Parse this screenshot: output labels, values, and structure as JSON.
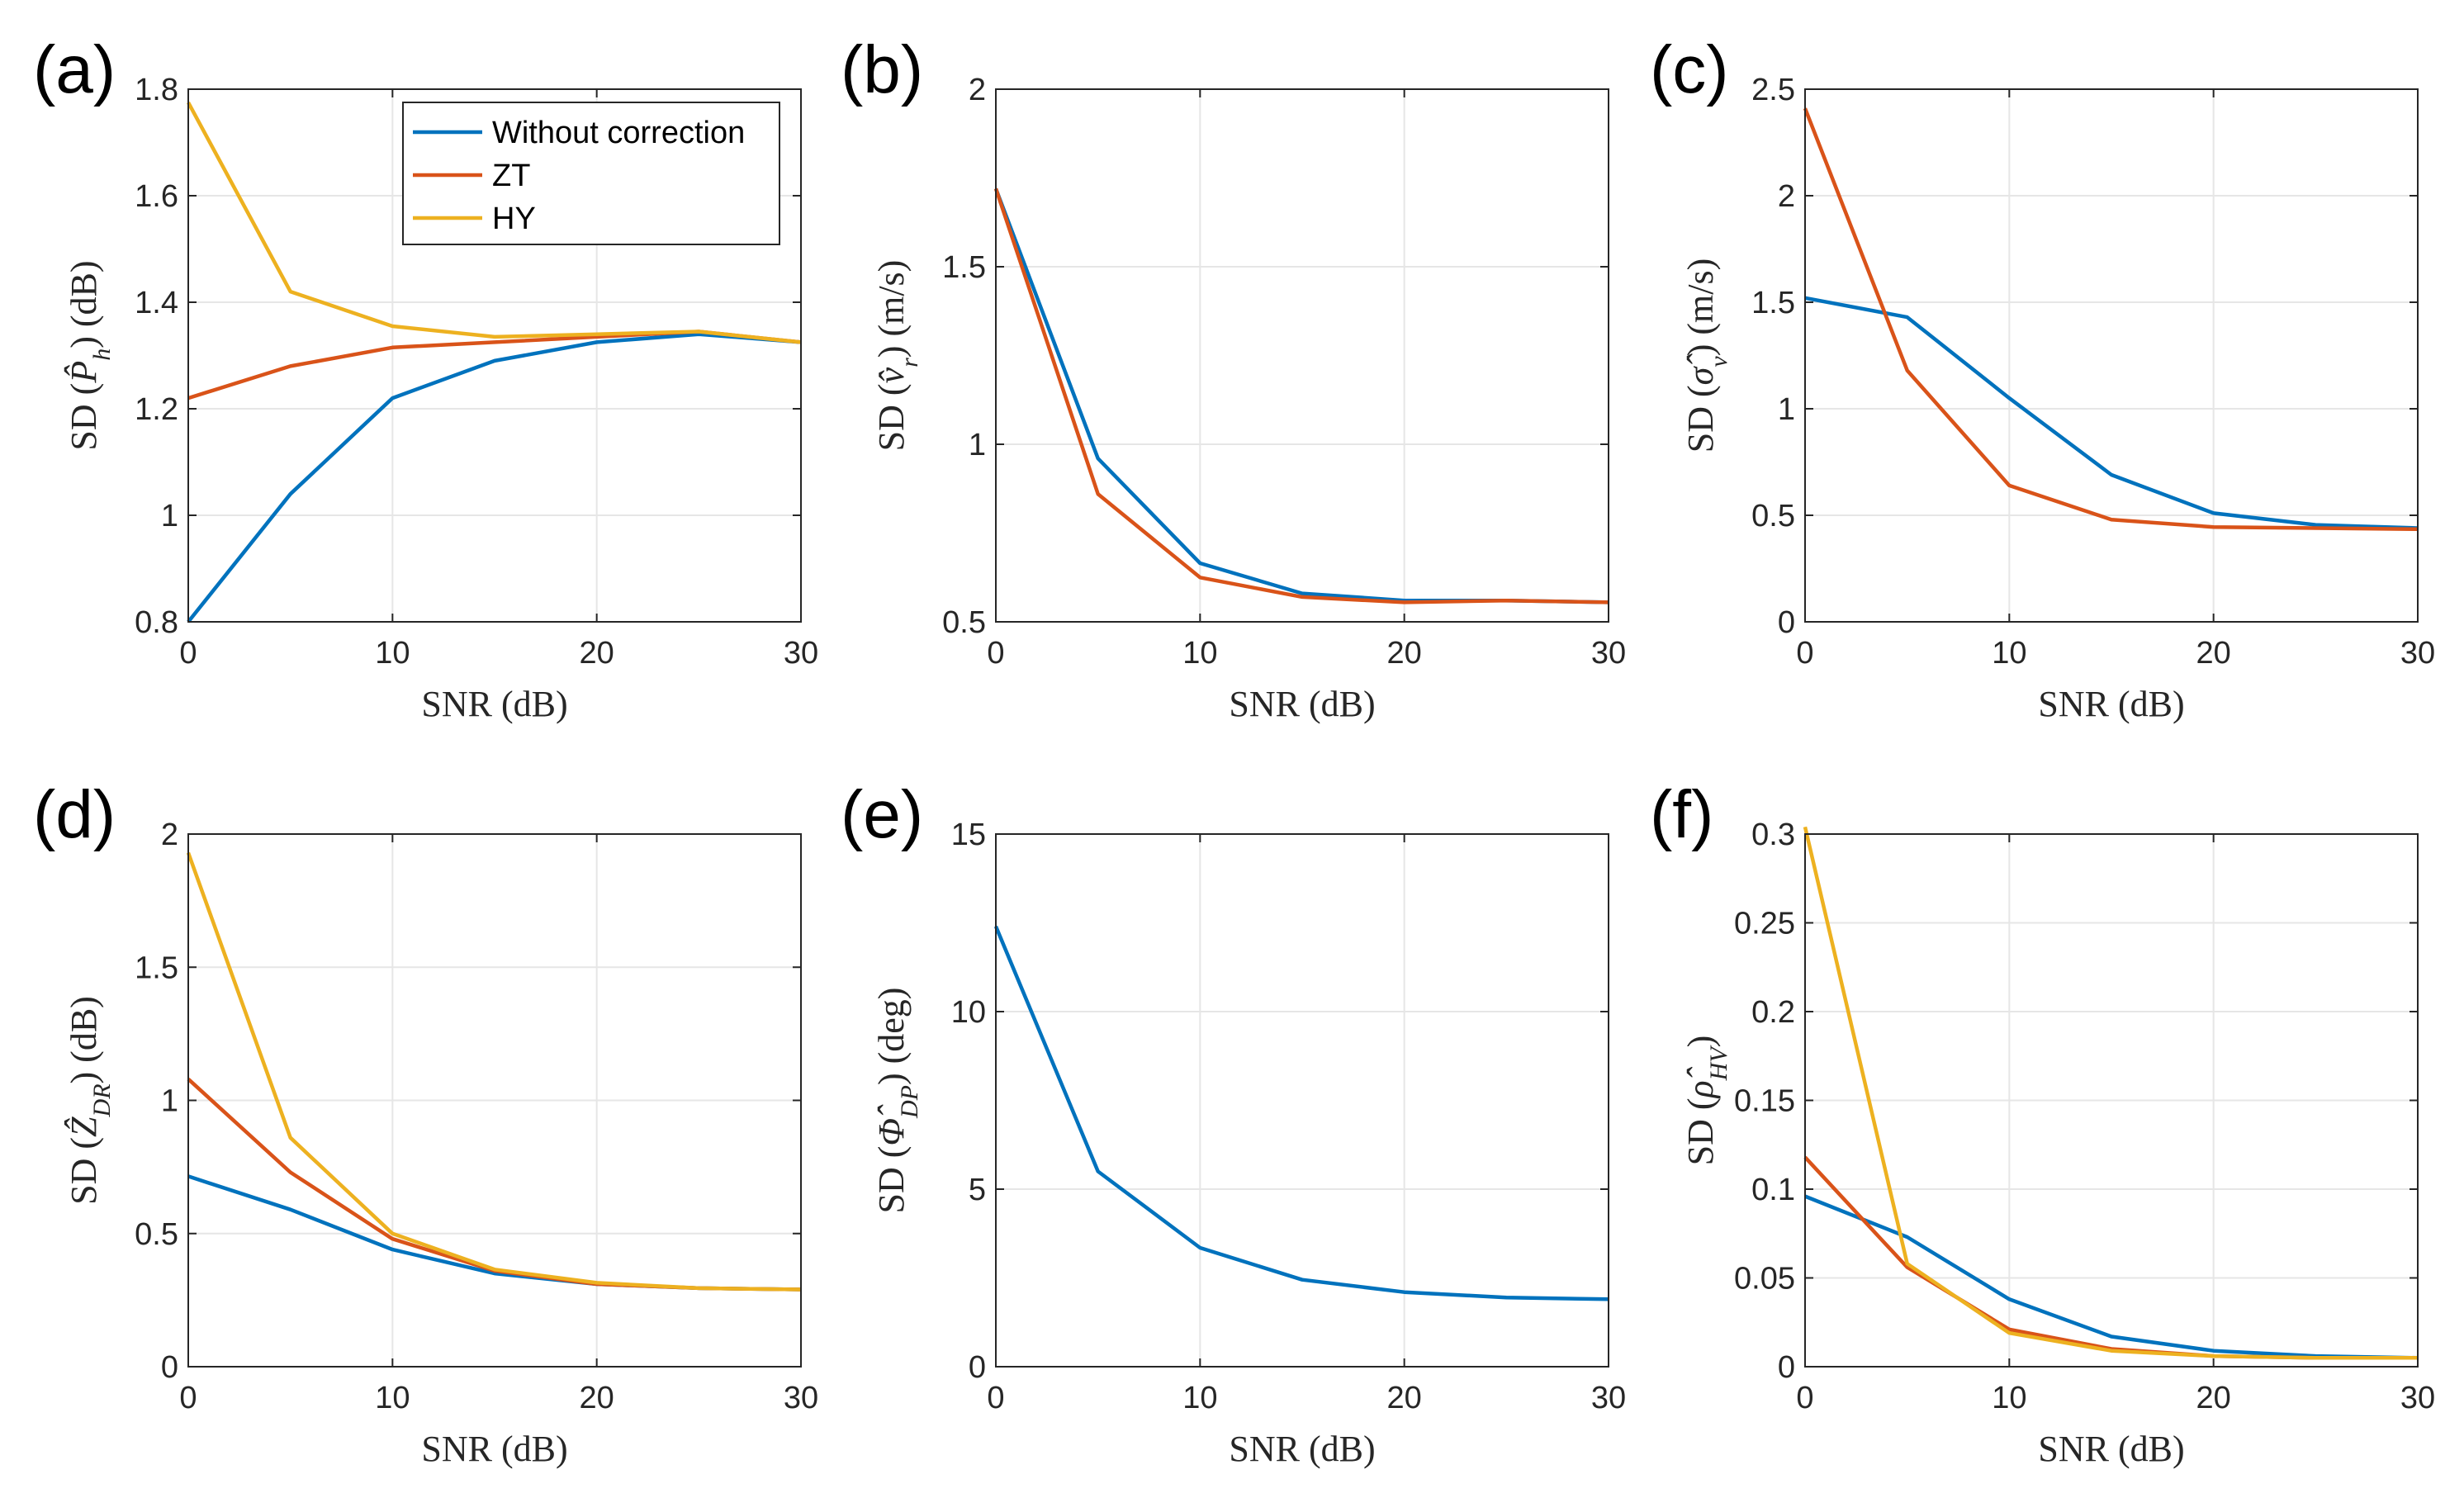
{
  "colors": {
    "without_correction": "#0072BD",
    "zt": "#D95319",
    "hy": "#EDB120",
    "grid": "#e6e6e6",
    "axis": "#262626"
  },
  "legend": {
    "entries": [
      "Without correction",
      "ZT",
      "HY"
    ]
  },
  "chart_data": [
    {
      "type": "line",
      "panel": "(a)",
      "xlabel": "SNR (dB)",
      "ylabel": "SD (P̂h) (dB)",
      "ylabel_parts": {
        "pre": "SD (",
        "sym": "P̂",
        "sub": "h",
        "post": ") (dB)"
      },
      "x": [
        0,
        5,
        10,
        15,
        20,
        25,
        30
      ],
      "xlim": [
        0,
        30
      ],
      "ylim": [
        0.8,
        1.8
      ],
      "xticks": [
        "0",
        "10",
        "20",
        "30"
      ],
      "yticks": [
        "0.8",
        "1",
        "1.2",
        "1.4",
        "1.6",
        "1.8"
      ],
      "grid": true,
      "legend_position": "top-right",
      "series": [
        {
          "name": "Without correction",
          "values": [
            0.8,
            1.04,
            1.22,
            1.29,
            1.325,
            1.34,
            1.325
          ]
        },
        {
          "name": "ZT",
          "values": [
            1.22,
            1.28,
            1.315,
            1.325,
            1.335,
            1.345,
            1.325
          ]
        },
        {
          "name": "HY",
          "values": [
            1.775,
            1.42,
            1.355,
            1.335,
            1.34,
            1.345,
            1.325
          ]
        }
      ]
    },
    {
      "type": "line",
      "panel": "(b)",
      "xlabel": "SNR (dB)",
      "ylabel": "SD (v̂r) (m/s)",
      "ylabel_parts": {
        "pre": "SD (",
        "sym": "v̂",
        "sub": "r",
        "post": ") (m/s)"
      },
      "x": [
        0,
        5,
        10,
        15,
        20,
        25,
        30
      ],
      "xlim": [
        0,
        30
      ],
      "ylim": [
        0.5,
        2
      ],
      "xticks": [
        "0",
        "10",
        "20",
        "30"
      ],
      "yticks": [
        "0.5",
        "1",
        "1.5",
        "2"
      ],
      "grid": true,
      "series": [
        {
          "name": "Without correction",
          "values": [
            1.72,
            0.96,
            0.665,
            0.58,
            0.56,
            0.56,
            0.555
          ]
        },
        {
          "name": "ZT",
          "values": [
            1.72,
            0.86,
            0.625,
            0.57,
            0.555,
            0.56,
            0.555
          ]
        }
      ]
    },
    {
      "type": "line",
      "panel": "(c)",
      "xlabel": "SNR (dB)",
      "ylabel": "SD (σ̂v) (m/s)",
      "ylabel_parts": {
        "pre": "SD (",
        "sym": "σ̂",
        "sub": "v",
        "post": ") (m/s)"
      },
      "x": [
        0,
        5,
        10,
        15,
        20,
        25,
        30
      ],
      "xlim": [
        0,
        30
      ],
      "ylim": [
        0,
        2.5
      ],
      "xticks": [
        "0",
        "10",
        "20",
        "30"
      ],
      "yticks": [
        "0",
        "0.5",
        "1",
        "1.5",
        "2",
        "2.5"
      ],
      "grid": true,
      "series": [
        {
          "name": "Without correction",
          "values": [
            1.52,
            1.43,
            1.05,
            0.69,
            0.51,
            0.455,
            0.44
          ]
        },
        {
          "name": "ZT",
          "values": [
            2.41,
            1.18,
            0.64,
            0.48,
            0.445,
            0.44,
            0.435
          ]
        }
      ]
    },
    {
      "type": "line",
      "panel": "(d)",
      "xlabel": "SNR (dB)",
      "ylabel": "SD (ẐDR) (dB)",
      "ylabel_parts": {
        "pre": "SD (",
        "sym": "Ẑ",
        "sub": "DR",
        "post": ") (dB)"
      },
      "x": [
        0,
        5,
        10,
        15,
        20,
        25,
        30
      ],
      "xlim": [
        0,
        30
      ],
      "ylim": [
        0,
        2
      ],
      "xticks": [
        "0",
        "10",
        "20",
        "30"
      ],
      "yticks": [
        "0",
        "0.5",
        "1",
        "1.5",
        "2"
      ],
      "grid": true,
      "series": [
        {
          "name": "Without correction",
          "values": [
            0.715,
            0.59,
            0.44,
            0.35,
            0.31,
            0.295,
            0.29
          ]
        },
        {
          "name": "ZT",
          "values": [
            1.08,
            0.73,
            0.48,
            0.36,
            0.31,
            0.295,
            0.29
          ]
        },
        {
          "name": "HY",
          "values": [
            1.93,
            0.86,
            0.5,
            0.365,
            0.315,
            0.295,
            0.29
          ]
        }
      ]
    },
    {
      "type": "line",
      "panel": "(e)",
      "xlabel": "SNR (dB)",
      "ylabel": "SD (Φ̂DP) (deg)",
      "ylabel_parts": {
        "pre": "SD (",
        "sym": "Φ̂",
        "sub": "DP",
        "post": ") (deg)"
      },
      "x": [
        0,
        5,
        10,
        15,
        20,
        25,
        30
      ],
      "xlim": [
        0,
        30
      ],
      "ylim": [
        0,
        15
      ],
      "xticks": [
        "0",
        "10",
        "20",
        "30"
      ],
      "yticks": [
        "0",
        "5",
        "10",
        "15"
      ],
      "grid": true,
      "series": [
        {
          "name": "Without correction",
          "values": [
            12.4,
            5.5,
            3.35,
            2.45,
            2.1,
            1.95,
            1.9
          ]
        }
      ]
    },
    {
      "type": "line",
      "panel": "(f)",
      "xlabel": "SNR (dB)",
      "ylabel": "SD (ρ̂HV)",
      "ylabel_parts": {
        "pre": "SD (",
        "sym": "ρ̂",
        "sub": "HV",
        "post": ")"
      },
      "x": [
        0,
        5,
        10,
        15,
        20,
        25,
        30
      ],
      "xlim": [
        0,
        30
      ],
      "ylim": [
        0,
        0.3
      ],
      "xticks": [
        "0",
        "10",
        "20",
        "30"
      ],
      "yticks": [
        "0",
        "0.05",
        "0.1",
        "0.15",
        "0.2",
        "0.25",
        "0.3"
      ],
      "grid": true,
      "series": [
        {
          "name": "Without correction",
          "values": [
            0.096,
            0.073,
            0.038,
            0.017,
            0.009,
            0.006,
            0.005
          ]
        },
        {
          "name": "ZT",
          "values": [
            0.118,
            0.056,
            0.021,
            0.01,
            0.006,
            0.005,
            0.005
          ]
        },
        {
          "name": "HY",
          "values": [
            0.304,
            0.058,
            0.019,
            0.009,
            0.006,
            0.005,
            0.005
          ]
        }
      ]
    }
  ]
}
